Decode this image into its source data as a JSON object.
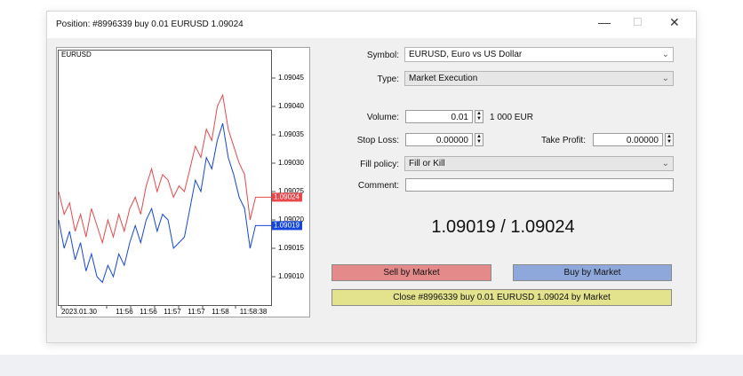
{
  "window": {
    "title": "Position: #8996339 buy 0.01 EURUSD 1.09024"
  },
  "chart": {
    "type": "line",
    "symbol": "EURUSD",
    "ylim": [
      1.09005,
      1.0905
    ],
    "yticks": [
      {
        "value": 1.09045,
        "label": "1.09045"
      },
      {
        "value": 1.0904,
        "label": "1.09040"
      },
      {
        "value": 1.09035,
        "label": "1.09035"
      },
      {
        "value": 1.0903,
        "label": "1.09030"
      },
      {
        "value": 1.09025,
        "label": "1.09025"
      },
      {
        "value": 1.0902,
        "label": "1.09020"
      },
      {
        "value": 1.09015,
        "label": "1.09015"
      },
      {
        "value": 1.0901,
        "label": "1.09010"
      }
    ],
    "x_labels": [
      "2023.01.30",
      "11:56",
      "11:56",
      "11:57",
      "11:57",
      "11:58",
      "11:58:38"
    ],
    "series": [
      {
        "color": "#e8474b",
        "last_label": "1.09024",
        "values": [
          1.09025,
          1.09021,
          1.09023,
          1.09018,
          1.09021,
          1.09017,
          1.09022,
          1.09019,
          1.09016,
          1.0902,
          1.09017,
          1.09021,
          1.09018,
          1.09022,
          1.09024,
          1.09021,
          1.09026,
          1.09029,
          1.09025,
          1.09028,
          1.09027,
          1.09024,
          1.09026,
          1.09025,
          1.09029,
          1.09033,
          1.09031,
          1.09036,
          1.09034,
          1.0904,
          1.09042,
          1.09036,
          1.09033,
          1.0903,
          1.09028,
          1.0902,
          1.09024,
          1.09024,
          1.09024,
          1.09024
        ]
      },
      {
        "color": "#1446d9",
        "last_label": "1.09019",
        "values": [
          1.0902,
          1.09015,
          1.09018,
          1.09013,
          1.09016,
          1.09011,
          1.09014,
          1.0901,
          1.09009,
          1.09012,
          1.0901,
          1.09014,
          1.09012,
          1.09016,
          1.09019,
          1.09016,
          1.0902,
          1.09022,
          1.09018,
          1.09021,
          1.0902,
          1.09015,
          1.09016,
          1.09017,
          1.09022,
          1.09027,
          1.09025,
          1.09031,
          1.09029,
          1.09034,
          1.09037,
          1.09031,
          1.09028,
          1.09024,
          1.09022,
          1.09015,
          1.09019,
          1.09019,
          1.09019,
          1.09019
        ]
      }
    ]
  },
  "form": {
    "symbol_label": "Symbol:",
    "symbol": "EURUSD, Euro vs US Dollar",
    "type_label": "Type:",
    "type": "Market Execution",
    "volume_label": "Volume:",
    "volume": "0.01",
    "volume_note": "1 000 EUR",
    "stop_loss_label": "Stop Loss:",
    "stop_loss": "0.00000",
    "take_profit_label": "Take Profit:",
    "take_profit": "0.00000",
    "fill_policy_label": "Fill policy:",
    "fill_policy": "Fill or Kill",
    "comment_label": "Comment:"
  },
  "quote": {
    "text": "1.09019 / 1.09024"
  },
  "buttons": {
    "sell": "Sell by Market",
    "buy": "Buy by Market",
    "close": "Close #8996339 buy 0.01 EURUSD 1.09024 by Market"
  }
}
